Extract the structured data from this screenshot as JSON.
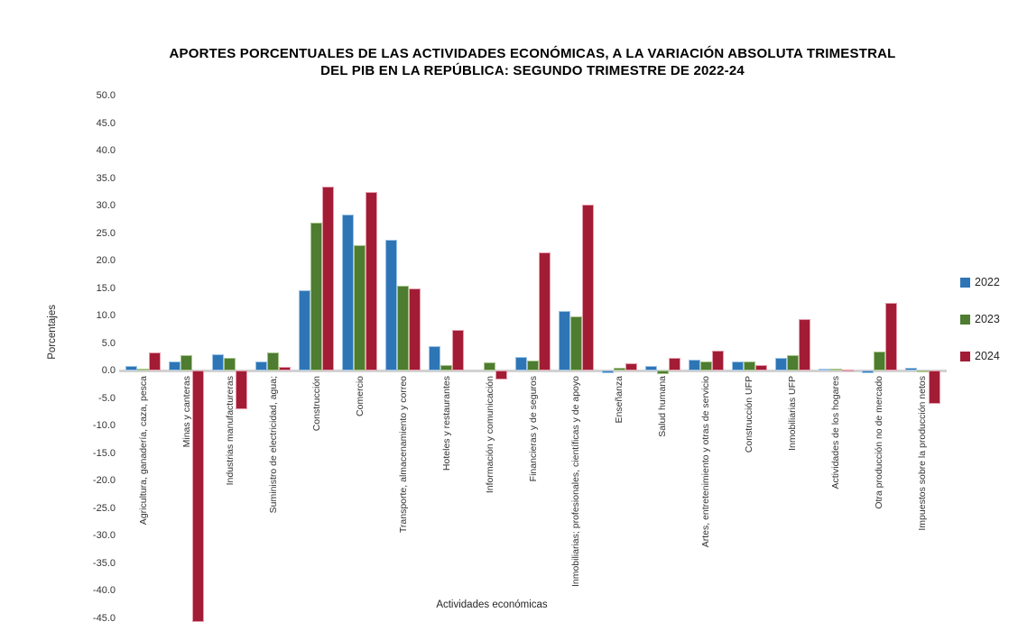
{
  "title": {
    "line1": "APORTES PORCENTUALES DE LAS ACTIVIDADES ECONÓMICAS, A LA VARIACIÓN ABSOLUTA  TRIMESTRAL",
    "line2": "DEL PIB  EN LA  REPÚBLICA: SEGUNDO TRIMESTRE DE 2022-24"
  },
  "axes": {
    "y_label": "Porcentajes",
    "x_label": "Actividades económicas"
  },
  "chart_data": {
    "type": "bar",
    "title": "APORTES PORCENTUALES DE LAS ACTIVIDADES ECONÓMICAS, A LA VARIACIÓN ABSOLUTA TRIMESTRAL DEL PIB EN LA REPÚBLICA: SEGUNDO TRIMESTRE DE 2022-24",
    "xlabel": "Actividades económicas",
    "ylabel": "Porcentajes",
    "ylim": [
      -45,
      50
    ],
    "ytick_step": 5,
    "grid": false,
    "legend_position": "right",
    "y_ticks": [
      "50.0",
      "45.0",
      "40.0",
      "35.0",
      "30.0",
      "25.0",
      "20.0",
      "15.0",
      "10.0",
      "5.0",
      "0.0",
      "-5.0",
      "-10.0",
      "-15.0",
      "-20.0",
      "-25.0",
      "-30.0",
      "-35.0",
      "-40.0",
      "-45.0"
    ],
    "categories": [
      "Agricultura, ganadería, caza, pesca",
      "Minas y canteras",
      "Industrias manufactureras",
      "Suministro de electricidad, agua;",
      "Construcción",
      "Comercio",
      "Transporte, almacenamiento y correo",
      "Hoteles y restaurantes",
      "Información y comunicación",
      "Financieras y de seguros",
      "Inmobiliarias; profesionales, científicas y de apoyo",
      "Enseñanza",
      "Salud humana",
      "Artes, entretenimiento y  otras de servicio",
      "Construcción UFP",
      "Inmobiliarias UFP",
      "Actividades de los hogares",
      "Otra producción no de mercado",
      "Impuestos sobre la producción netos"
    ],
    "series": [
      {
        "name": "2022",
        "color": "#2E75B6",
        "border": "#9CC3E6",
        "values": [
          0.8,
          1.6,
          3.0,
          1.6,
          14.7,
          28.3,
          23.8,
          4.5,
          0.0,
          2.5,
          10.9,
          -0.4,
          0.9,
          2.0,
          1.6,
          2.4,
          0.3,
          -0.4,
          0.6
        ]
      },
      {
        "name": "2023",
        "color": "#4E7C31",
        "border": "#A8C58A",
        "values": [
          0.3,
          2.8,
          2.4,
          3.4,
          26.9,
          22.8,
          15.5,
          1.0,
          1.5,
          1.9,
          9.9,
          0.5,
          -0.6,
          1.7,
          1.6,
          2.8,
          0.3,
          3.5,
          -0.3
        ]
      },
      {
        "name": "2024",
        "color": "#A21C35",
        "border": "#E59DAD",
        "values": [
          3.3,
          -45.7,
          -7.0,
          0.7,
          33.5,
          32.5,
          15.0,
          7.4,
          -1.6,
          21.5,
          30.2,
          1.3,
          2.4,
          3.6,
          1.0,
          9.4,
          0.2,
          12.4,
          -6.1
        ]
      }
    ]
  }
}
